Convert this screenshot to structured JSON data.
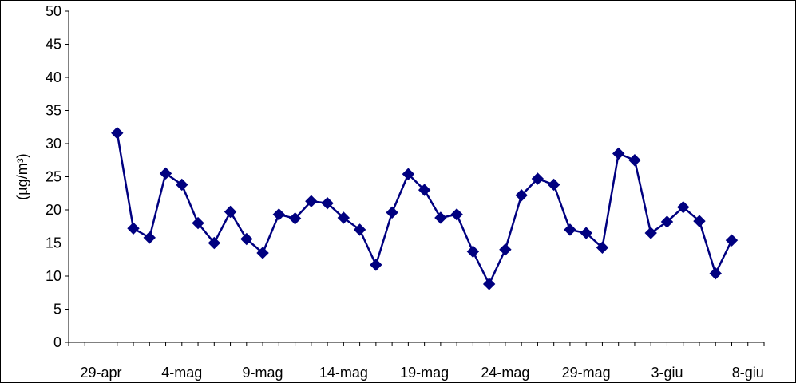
{
  "chart_data": {
    "type": "line",
    "title": "",
    "xlabel": "",
    "ylabel": "(µg/m³)",
    "ylim": [
      0,
      50
    ],
    "yticks": [
      0,
      5,
      10,
      15,
      20,
      25,
      30,
      35,
      40,
      45,
      50
    ],
    "xlim": [
      "27-apr",
      "9-giu"
    ],
    "xtick_labels": [
      "29-apr",
      "4-mag",
      "9-mag",
      "14-mag",
      "19-mag",
      "24-mag",
      "29-mag",
      "3-giu",
      "8-giu"
    ],
    "grid": false,
    "legend": "none",
    "series_color": "#000080",
    "marker": "diamond",
    "series": [
      {
        "x": [
          "30-apr",
          "1-mag",
          "2-mag",
          "3-mag",
          "4-mag",
          "5-mag",
          "6-mag",
          "7-mag",
          "8-mag",
          "9-mag",
          "10-mag",
          "11-mag",
          "12-mag",
          "13-mag",
          "14-mag",
          "15-mag",
          "16-mag",
          "17-mag",
          "18-mag",
          "19-mag",
          "20-mag",
          "21-mag",
          "22-mag",
          "23-mag",
          "24-mag",
          "25-mag",
          "26-mag",
          "27-mag",
          "28-mag",
          "29-mag",
          "30-mag",
          "31-mag",
          "1-giu",
          "2-giu",
          "3-giu",
          "4-giu",
          "5-giu",
          "6-giu",
          "7-giu"
        ],
        "values": [
          31.6,
          17.2,
          15.8,
          25.5,
          23.8,
          18.0,
          15.0,
          19.7,
          15.6,
          13.5,
          19.3,
          18.7,
          21.3,
          21.0,
          18.8,
          17.0,
          11.7,
          19.6,
          25.4,
          23.0,
          18.8,
          19.3,
          13.7,
          8.8,
          14.0,
          22.2,
          24.7,
          23.8,
          17.0,
          16.5,
          14.3,
          28.5,
          27.5,
          16.5,
          18.2,
          20.4,
          18.3,
          10.4,
          15.4
        ]
      }
    ]
  }
}
